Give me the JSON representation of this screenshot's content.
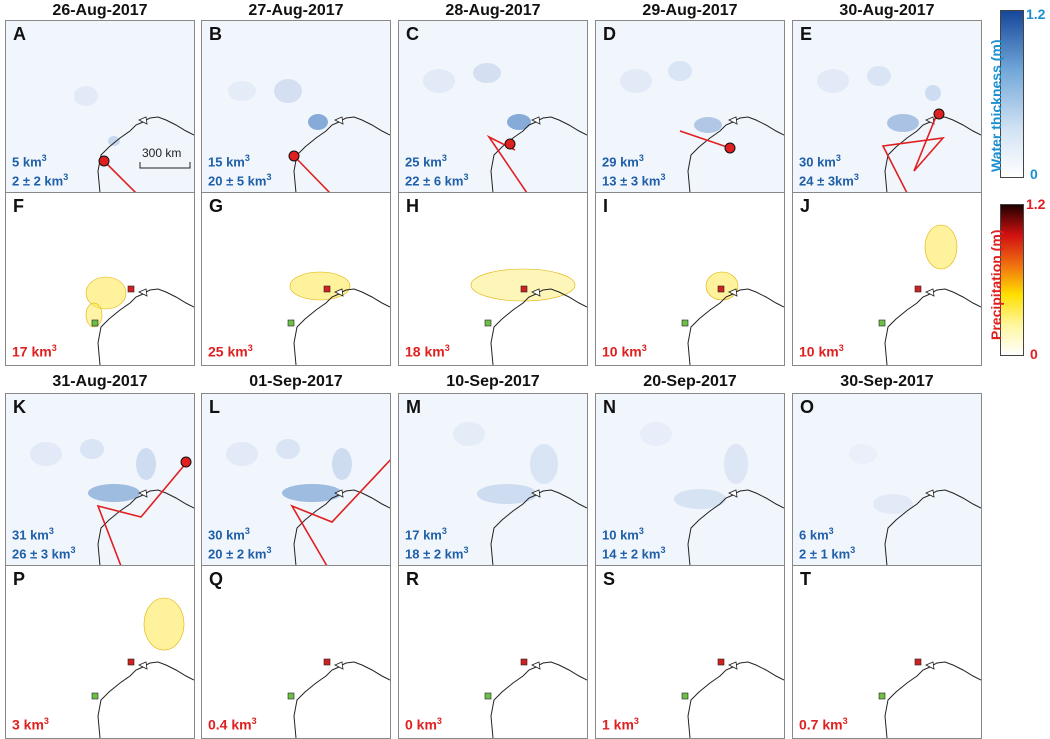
{
  "colors": {
    "water_text": "#1f5fa8",
    "precip_text": "#e02020",
    "track": "#e02020",
    "marker": "#e02020"
  },
  "colorbars": {
    "water": {
      "title": "Water thickness (m)",
      "max": "1.2",
      "min": "0",
      "color": "#1b8fd0"
    },
    "precip": {
      "title": "Precipitation (m)",
      "max": "1.2",
      "min": "0",
      "color": "#e02020"
    }
  },
  "scale_bar_label": "300 km",
  "rows": [
    {
      "kind": "water",
      "panels": [
        {
          "date": "26-Aug-2017",
          "letter": "A",
          "vol1": "5 km",
          "vol2": "2 ± 2 km"
        },
        {
          "date": "27-Aug-2017",
          "letter": "B",
          "vol1": "15 km",
          "vol2": "20 ± 5 km"
        },
        {
          "date": "28-Aug-2017",
          "letter": "C",
          "vol1": "25 km",
          "vol2": "22 ± 6 km"
        },
        {
          "date": "29-Aug-2017",
          "letter": "D",
          "vol1": "29 km",
          "vol2": "13 ± 3 km"
        },
        {
          "date": "30-Aug-2017",
          "letter": "E",
          "vol1": "30 km",
          "vol2": "24 ± 3km"
        }
      ]
    },
    {
      "kind": "precip",
      "panels": [
        {
          "letter": "F",
          "vol1": "17 km"
        },
        {
          "letter": "G",
          "vol1": "25 km"
        },
        {
          "letter": "H",
          "vol1": "18 km"
        },
        {
          "letter": "I",
          "vol1": "10 km"
        },
        {
          "letter": "J",
          "vol1": "10 km"
        }
      ]
    },
    {
      "kind": "water",
      "panels": [
        {
          "date": "31-Aug-2017",
          "letter": "K",
          "vol1": "31 km",
          "vol2": "26 ± 3 km"
        },
        {
          "date": "01-Sep-2017",
          "letter": "L",
          "vol1": "30 km",
          "vol2": "20 ± 2 km"
        },
        {
          "date": "10-Sep-2017",
          "letter": "M",
          "vol1": "17 km",
          "vol2": "18 ± 2 km"
        },
        {
          "date": "20-Sep-2017",
          "letter": "N",
          "vol1": "10  km",
          "vol2": "14 ± 2 km"
        },
        {
          "date": "30-Sep-2017",
          "letter": "O",
          "vol1": "6 km",
          "vol2": "2 ± 1 km"
        }
      ]
    },
    {
      "kind": "precip",
      "panels": [
        {
          "letter": "P",
          "vol1": "3 km"
        },
        {
          "letter": "Q",
          "vol1": "0.4 km"
        },
        {
          "letter": "R",
          "vol1": "0 km"
        },
        {
          "letter": "S",
          "vol1": "1 km"
        },
        {
          "letter": "T",
          "vol1": "0.7 km"
        }
      ]
    }
  ],
  "volume_exponent": "3"
}
